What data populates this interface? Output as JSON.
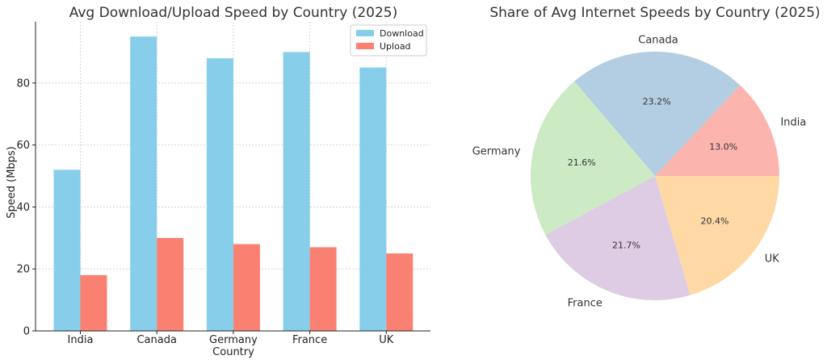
{
  "chart_data": [
    {
      "type": "bar",
      "title": "Avg Download/Upload Speed by Country (2025)",
      "xlabel": "Country",
      "ylabel": "Speed (Mbps)",
      "categories": [
        "India",
        "Canada",
        "Germany",
        "France",
        "UK"
      ],
      "series": [
        {
          "name": "Download",
          "values": [
            52,
            95,
            88,
            90,
            85
          ],
          "color": "#87ceeb"
        },
        {
          "name": "Upload",
          "values": [
            18,
            30,
            28,
            27,
            25
          ],
          "color": "#fa8072"
        }
      ],
      "ylim": [
        0,
        99.75
      ],
      "yticks": [
        0,
        20,
        40,
        60,
        80
      ],
      "grid": true,
      "legend": "top-right"
    },
    {
      "type": "pie",
      "title": "Share of Avg Internet Speeds by Country (2025)",
      "labels": [
        "India",
        "Canada",
        "Germany",
        "France",
        "UK"
      ],
      "values": [
        13.0,
        23.2,
        21.6,
        21.7,
        20.4
      ],
      "value_labels": [
        "13.0%",
        "23.2%",
        "21.6%",
        "21.7%",
        "20.4%"
      ],
      "colors": [
        "#fbb4ae",
        "#b3cde3",
        "#ccebc5",
        "#decbe4",
        "#fed9a6"
      ]
    }
  ]
}
